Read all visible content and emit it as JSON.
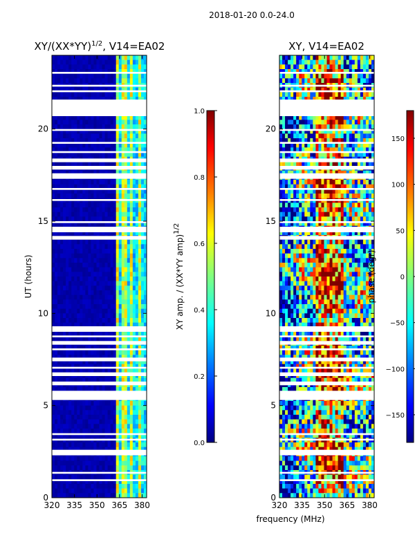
{
  "figure": {
    "suptitle": "2018-01-20 0.0-24.0",
    "shared_xlabel": "frequency (MHz)"
  },
  "colors": {
    "jet": [
      "#000080",
      "#0000ff",
      "#0080ff",
      "#00ffff",
      "#80ff80",
      "#ffff00",
      "#ff8000",
      "#ff0000",
      "#800000"
    ]
  },
  "chart_data": [
    {
      "type": "heatmap",
      "title_main": "XY/(XX*YY)",
      "title_exp": "1/2",
      "title_suffix": ", V14=EA02",
      "ylabel": "UT (hours)",
      "xlabel": "",
      "xlim": [
        320,
        383
      ],
      "ylim": [
        0,
        24
      ],
      "xticks": [
        320,
        335,
        350,
        365,
        380
      ],
      "yticks": [
        0,
        5,
        10,
        15,
        20
      ],
      "colorbar": {
        "label": "XY amp. / (XX*YY amp)",
        "label_exp": "1/2",
        "range": [
          0.0,
          1.0
        ],
        "ticks": [
          "0.0",
          "0.2",
          "0.4",
          "0.6",
          "0.8",
          "1.0"
        ]
      },
      "value_description": "Mostly near 0 for 320-362 MHz; elevated (0.3-0.8) in vertical bands between about 362 and 383 MHz",
      "bright_bands_mhz": [
        [
          362,
          365
        ],
        [
          367,
          370
        ],
        [
          372,
          374
        ],
        [
          377,
          380
        ]
      ],
      "flagged_hours": [
        [
          0.9,
          1.0
        ],
        [
          1.3,
          1.4
        ],
        [
          2.3,
          2.6
        ],
        [
          3.1,
          3.2
        ],
        [
          3.4,
          3.5
        ],
        [
          5.3,
          5.8
        ],
        [
          6.1,
          6.3
        ],
        [
          6.6,
          6.8
        ],
        [
          7.0,
          7.1
        ],
        [
          7.4,
          7.6
        ],
        [
          8.0,
          8.1
        ],
        [
          8.3,
          8.5
        ],
        [
          8.7,
          8.8
        ],
        [
          9.0,
          9.3
        ],
        [
          14.0,
          14.2
        ],
        [
          14.4,
          14.7
        ],
        [
          14.9,
          15.0
        ],
        [
          16.1,
          16.2
        ],
        [
          16.7,
          16.8
        ],
        [
          17.3,
          17.6
        ],
        [
          17.8,
          18.0
        ],
        [
          18.2,
          18.4
        ],
        [
          18.7,
          18.8
        ],
        [
          19.2,
          19.3
        ],
        [
          19.9,
          20.0
        ],
        [
          20.7,
          21.6
        ],
        [
          22.0,
          22.1
        ],
        [
          22.3,
          22.4
        ],
        [
          23.0,
          23.1
        ]
      ]
    },
    {
      "type": "heatmap",
      "title": "XY, V14=EA02",
      "ylabel": "",
      "xlabel": "frequency (MHz)",
      "xlim": [
        320,
        383
      ],
      "ylim": [
        0,
        24
      ],
      "xticks": [
        320,
        335,
        350,
        365,
        380
      ],
      "yticks": [
        0,
        5,
        10,
        15,
        20
      ],
      "colorbar": {
        "label": "phase (degr)",
        "range": [
          -180,
          180
        ],
        "ticks": [
          "−150",
          "−100",
          "−50",
          "0",
          "50",
          "100",
          "150"
        ]
      },
      "value_description": "Noisy phase field spanning the full -180 to 180 degree range with red/yellow dominated patches near 350-360 MHz and blue/cyan patches at low and high frequencies",
      "flagged_hours": [
        [
          0.9,
          1.0
        ],
        [
          1.3,
          1.4
        ],
        [
          2.3,
          2.6
        ],
        [
          3.1,
          3.2
        ],
        [
          3.4,
          3.5
        ],
        [
          5.3,
          5.8
        ],
        [
          6.1,
          6.3
        ],
        [
          6.6,
          6.8
        ],
        [
          7.0,
          7.1
        ],
        [
          7.4,
          7.6
        ],
        [
          8.0,
          8.1
        ],
        [
          8.3,
          8.5
        ],
        [
          8.7,
          8.8
        ],
        [
          9.0,
          9.3
        ],
        [
          14.0,
          14.2
        ],
        [
          14.4,
          14.7
        ],
        [
          14.9,
          15.0
        ],
        [
          16.1,
          16.2
        ],
        [
          16.7,
          16.8
        ],
        [
          17.3,
          17.6
        ],
        [
          17.8,
          18.0
        ],
        [
          18.2,
          18.4
        ],
        [
          18.7,
          18.8
        ],
        [
          19.2,
          19.3
        ],
        [
          19.9,
          20.0
        ],
        [
          20.7,
          21.6
        ],
        [
          22.0,
          22.1
        ],
        [
          22.3,
          22.4
        ],
        [
          23.0,
          23.1
        ]
      ]
    }
  ]
}
